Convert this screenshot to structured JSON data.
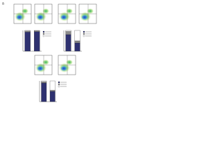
{
  "panel_label": "a",
  "bar_charts": [
    {
      "ylim": [
        0,
        100
      ],
      "segment_colors": [
        "#2e3170",
        "#8c8c8c",
        "#ffffff"
      ],
      "bars": [
        [
          92,
          5,
          3
        ],
        [
          94,
          4,
          2
        ]
      ]
    },
    {
      "ylim": [
        0,
        100
      ],
      "segment_colors": [
        "#2e3170",
        "#8c8c8c",
        "#ffffff"
      ],
      "bars": [
        [
          80,
          15,
          5
        ],
        [
          40,
          10,
          50
        ]
      ]
    },
    {
      "ylim": [
        0,
        100
      ],
      "segment_colors": [
        "#2e3170",
        "#8c8c8c",
        "#ffffff"
      ],
      "bars": [
        [
          90,
          6,
          4
        ],
        [
          50,
          5,
          45
        ]
      ]
    }
  ]
}
